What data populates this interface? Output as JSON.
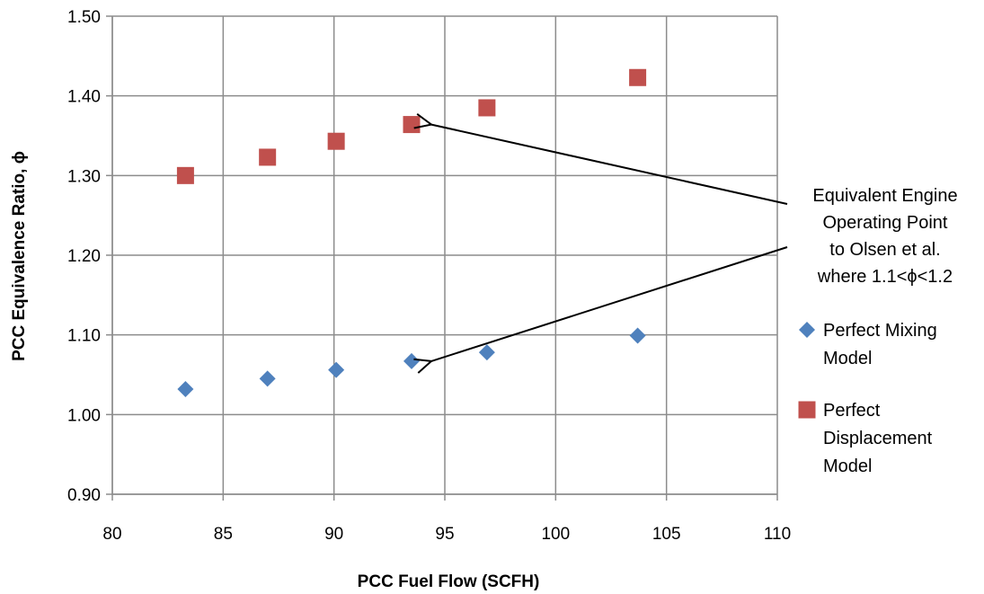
{
  "chart_data": {
    "type": "scatter",
    "xlabel": "PCC Fuel Flow (SCFH)",
    "ylabel": "PCC Equivalence Ratio, ϕ",
    "xlim": [
      80,
      110
    ],
    "ylim": [
      0.9,
      1.5
    ],
    "x_ticks": [
      "80",
      "85",
      "90",
      "95",
      "100",
      "105",
      "110"
    ],
    "y_ticks": [
      "0.90",
      "1.00",
      "1.10",
      "1.20",
      "1.30",
      "1.40",
      "1.50"
    ],
    "grid": true,
    "legend_position": "right",
    "series": [
      {
        "name_lines": [
          "Perfect Mixing",
          "Model"
        ],
        "marker": "diamond",
        "color": "#4f81bd",
        "points": [
          {
            "x": 83.3,
            "y": 1.032
          },
          {
            "x": 87.0,
            "y": 1.045
          },
          {
            "x": 90.1,
            "y": 1.056
          },
          {
            "x": 93.5,
            "y": 1.067
          },
          {
            "x": 96.9,
            "y": 1.078
          },
          {
            "x": 103.7,
            "y": 1.099
          }
        ]
      },
      {
        "name_lines": [
          "Perfect",
          "Displacement",
          "Model"
        ],
        "marker": "square",
        "color": "#c0504d",
        "points": [
          {
            "x": 83.3,
            "y": 1.3
          },
          {
            "x": 87.0,
            "y": 1.323
          },
          {
            "x": 90.1,
            "y": 1.343
          },
          {
            "x": 93.5,
            "y": 1.364
          },
          {
            "x": 96.9,
            "y": 1.385
          },
          {
            "x": 103.7,
            "y": 1.423
          }
        ]
      }
    ],
    "annotation": {
      "lines": [
        "Equivalent Engine",
        "Operating Point",
        "to Olsen et al.",
        "where 1.1<ϕ<1.2"
      ],
      "arrow_targets": [
        {
          "x": 93.5,
          "y": 1.364
        },
        {
          "x": 93.5,
          "y": 1.067
        }
      ]
    }
  }
}
